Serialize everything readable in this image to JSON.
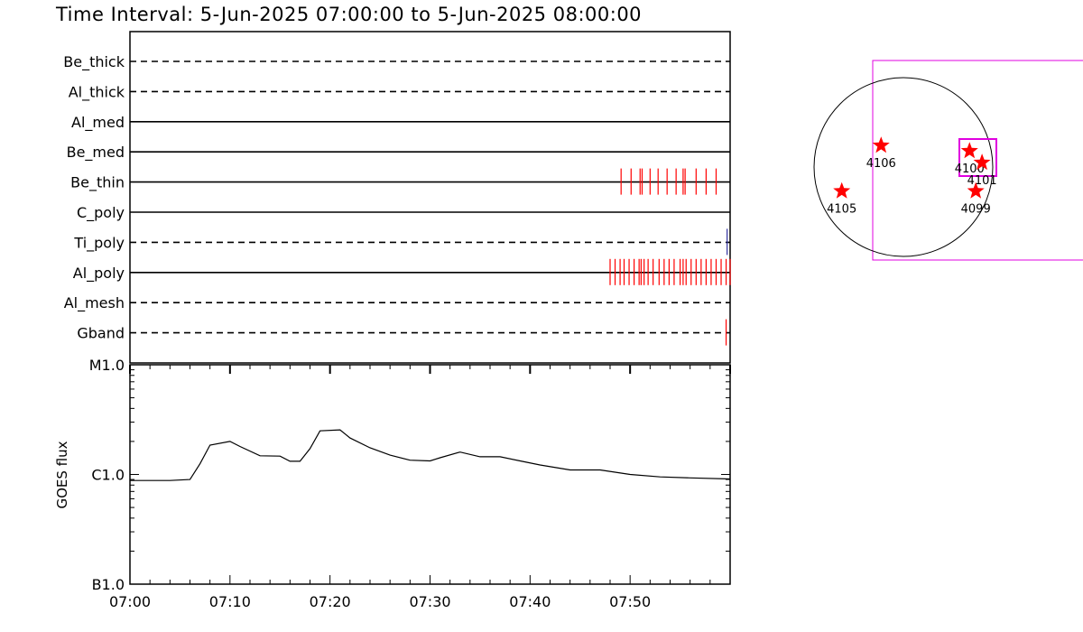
{
  "header": {
    "title": "Time Interval:  5-Jun-2025 07:00:00 to  5-Jun-2025 08:00:00"
  },
  "colors": {
    "background": "#ffffff",
    "axes": "#000000",
    "event_red": "#ff0000",
    "event_blue": "#3030a0",
    "fov_magenta": "#e000e0",
    "ar_star": "#ff0000"
  },
  "chart_data": [
    {
      "type": "timeline",
      "x_unit": "minutes after 07:00",
      "xlim": [
        0,
        60
      ],
      "filters": [
        {
          "name": "Be_thick",
          "line_style": "dashed",
          "events": []
        },
        {
          "name": "Al_thick",
          "line_style": "dashed",
          "events": []
        },
        {
          "name": "Al_med",
          "line_style": "solid",
          "events": []
        },
        {
          "name": "Be_med",
          "line_style": "solid",
          "events": []
        },
        {
          "name": "Be_thin",
          "line_style": "solid",
          "event_color": "red",
          "events": [
            49.1,
            50.1,
            51.0,
            51.2,
            52.0,
            52.8,
            53.7,
            54.6,
            55.3,
            55.5,
            56.6,
            57.6,
            58.6
          ]
        },
        {
          "name": "C_poly",
          "line_style": "solid",
          "events": []
        },
        {
          "name": "Ti_poly",
          "line_style": "dashed",
          "event_color": "blue",
          "events": [
            59.7
          ]
        },
        {
          "name": "Al_poly",
          "line_style": "solid",
          "event_color": "red",
          "events": [
            48.0,
            48.5,
            49.0,
            49.4,
            49.9,
            50.4,
            50.9,
            51.1,
            51.4,
            51.8,
            52.3,
            52.9,
            53.4,
            53.9,
            54.4,
            55.0,
            55.3,
            55.6,
            56.1,
            56.6,
            57.1,
            57.6,
            58.1,
            58.6,
            59.1,
            59.6,
            60.0
          ]
        },
        {
          "name": "Al_mesh",
          "line_style": "dashed",
          "events": []
        },
        {
          "name": "Gband",
          "line_style": "dashed",
          "event_color": "red",
          "events": [
            59.6
          ]
        }
      ]
    },
    {
      "type": "line",
      "ylabel": "GOES flux",
      "yscale": "log",
      "ylim": [
        1e-07,
        1e-05
      ],
      "ytick_labels": [
        "M1.0",
        "C1.0",
        "B1.0"
      ],
      "ytick_values": [
        1e-05,
        1e-06,
        1e-07
      ],
      "x_unit": "minutes after 07:00",
      "xlim": [
        0,
        60
      ],
      "xtick_labels": [
        "07:00",
        "07:10",
        "07:20",
        "07:30",
        "07:40",
        "07:50"
      ],
      "xtick_values": [
        0,
        10,
        20,
        30,
        40,
        50
      ],
      "series": [
        {
          "x": [
            0,
            2,
            4,
            6,
            7,
            8,
            10,
            11,
            13,
            15,
            16,
            17,
            18,
            19,
            21,
            22,
            24,
            26,
            28,
            30,
            31,
            33,
            35,
            37,
            39,
            41,
            44,
            47,
            50,
            53,
            56,
            60
          ],
          "y": [
            8.8e-07,
            8.8e-07,
            8.8e-07,
            9e-07,
            1.25e-06,
            1.85e-06,
            2e-06,
            1.8e-06,
            1.48e-06,
            1.47e-06,
            1.32e-06,
            1.32e-06,
            1.72e-06,
            2.5e-06,
            2.55e-06,
            2.15e-06,
            1.75e-06,
            1.5e-06,
            1.35e-06,
            1.33e-06,
            1.42e-06,
            1.6e-06,
            1.45e-06,
            1.45e-06,
            1.33e-06,
            1.22e-06,
            1.1e-06,
            1.1e-06,
            1e-06,
            9.5e-07,
            9.3e-07,
            9.1e-07
          ]
        }
      ]
    },
    {
      "type": "scatter",
      "markers": [
        {
          "label": "4106",
          "x": -0.25,
          "y": 0.24
        },
        {
          "label": "4100",
          "x": 0.74,
          "y": 0.18
        },
        {
          "label": "4101",
          "x": 0.88,
          "y": 0.05
        },
        {
          "label": "4099",
          "x": 0.81,
          "y": -0.27
        },
        {
          "label": "4105",
          "x": -0.69,
          "y": -0.27
        }
      ]
    }
  ]
}
